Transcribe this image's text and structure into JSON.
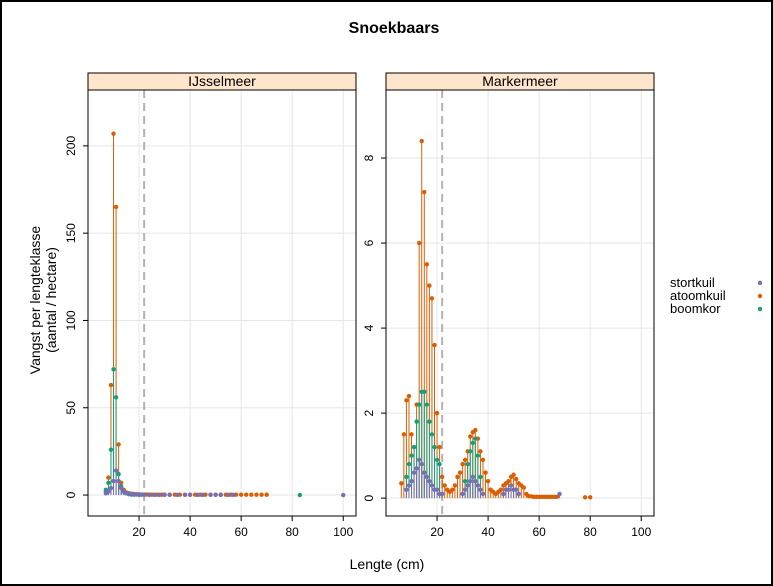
{
  "chart_data": {
    "type": "scatter",
    "style": "stem-plot",
    "title": "Snoekbaars",
    "xlabel": "Lengte (cm)",
    "ylabel_lines": [
      "Vangst per lengteklasse",
      "(aantal / hectare)"
    ],
    "reference_line_x": 22,
    "legend": {
      "placement": "right",
      "entries": [
        "stortkuil",
        "atoomkuil",
        "boomkor"
      ]
    },
    "colors": {
      "stortkuil": "#7570b3",
      "atoomkuil": "#d95f02",
      "boomkor": "#1b9e77",
      "strip": "#ffe5cc",
      "grid": "#e6e6e6",
      "refline": "#b3b3b3"
    },
    "grid": true,
    "panels": [
      {
        "name": "IJsselmeer",
        "xlim": [
          0,
          105
        ],
        "ylim": [
          -12,
          232
        ],
        "xticks": [
          20,
          40,
          60,
          80,
          100
        ],
        "yticks": [
          0,
          50,
          100,
          150,
          200
        ],
        "series": [
          {
            "name": "stortkuil",
            "x": [
              7,
              8,
              9,
              10,
              11,
              12,
              13,
              14,
              15,
              16,
              17,
              18,
              19,
              20,
              21,
              22,
              24,
              26,
              28,
              30,
              32,
              35,
              38,
              40,
              43,
              45,
              48,
              50,
              52,
              55,
              57,
              100
            ],
            "y": [
              1,
              2,
              4,
              8,
              14,
              8,
              4,
              2,
              1,
              1,
              0.5,
              0.4,
              0.3,
              0.3,
              0.2,
              0.2,
              0.1,
              0.1,
              0.1,
              0.1,
              0.1,
              0.1,
              0.1,
              0.1,
              0.1,
              0.1,
              0.1,
              0.1,
              0.1,
              0.1,
              0.1,
              0
            ]
          },
          {
            "name": "atoomkuil",
            "x": [
              7,
              8,
              9,
              10,
              11,
              12,
              13,
              14,
              15,
              16,
              17,
              18,
              19,
              20,
              21,
              22,
              23,
              24,
              25,
              26,
              27,
              28,
              29,
              30,
              32,
              34,
              36,
              38,
              40,
              42,
              44,
              46,
              48,
              50,
              52,
              54,
              56,
              58,
              60,
              62,
              64,
              66,
              68,
              70
            ],
            "y": [
              2,
              10,
              63,
              207,
              165,
              29,
              7,
              3,
              1.5,
              1,
              0.8,
              0.6,
              0.5,
              0.4,
              0.3,
              0.3,
              0.3,
              0.3,
              0.2,
              0.2,
              0.2,
              0.2,
              0.2,
              0.2,
              0.2,
              0.2,
              0.2,
              0.2,
              0.2,
              0.2,
              0.2,
              0.2,
              0.2,
              0.2,
              0.2,
              0.2,
              0.2,
              0.2,
              0.2,
              0.2,
              0.2,
              0.2,
              0.2,
              0.2
            ]
          },
          {
            "name": "boomkor",
            "x": [
              7,
              8,
              9,
              10,
              11,
              12,
              13,
              14,
              15,
              16,
              17,
              18,
              20,
              83
            ],
            "y": [
              3,
              7,
              26,
              72,
              56,
              12,
              5,
              2,
              1,
              0.5,
              0.3,
              0.2,
              0.1,
              0
            ]
          }
        ]
      },
      {
        "name": "Markermeer",
        "xlim": [
          0,
          105
        ],
        "ylim": [
          -0.42,
          9.6
        ],
        "xticks": [
          20,
          40,
          60,
          80,
          100
        ],
        "yticks": [
          0,
          2,
          4,
          6,
          8
        ],
        "series": [
          {
            "name": "stortkuil",
            "x": [
              8,
              9,
              10,
              11,
              12,
              13,
              14,
              15,
              16,
              17,
              18,
              19,
              20,
              21,
              22,
              30,
              31,
              32,
              33,
              34,
              35,
              36,
              37,
              38,
              46,
              47,
              48,
              49,
              50,
              51,
              52,
              68
            ],
            "y": [
              0.2,
              0.3,
              0.4,
              0.6,
              0.7,
              0.9,
              0.8,
              0.6,
              0.5,
              0.4,
              0.3,
              0.2,
              0.2,
              0.1,
              0.1,
              0.1,
              0.2,
              0.3,
              0.4,
              0.5,
              0.4,
              0.3,
              0.2,
              0.1,
              0.1,
              0.2,
              0.2,
              0.3,
              0.2,
              0.2,
              0.1,
              0.1
            ]
          },
          {
            "name": "atoomkuil",
            "x": [
              6,
              7,
              8,
              9,
              10,
              11,
              12,
              13,
              14,
              15,
              16,
              17,
              18,
              19,
              20,
              21,
              22,
              23,
              24,
              25,
              26,
              27,
              28,
              29,
              30,
              31,
              32,
              33,
              34,
              35,
              36,
              37,
              38,
              39,
              40,
              41,
              42,
              43,
              44,
              45,
              46,
              47,
              48,
              49,
              50,
              51,
              52,
              53,
              54,
              55,
              56,
              57,
              58,
              59,
              60,
              61,
              62,
              63,
              64,
              65,
              66,
              67,
              78,
              80
            ],
            "y": [
              0.35,
              1.5,
              2.3,
              2.4,
              1.5,
              1.2,
              2.2,
              6.0,
              8.4,
              7.2,
              5.5,
              5.0,
              4.7,
              3.6,
              2.0,
              1.2,
              0.5,
              0.3,
              0.2,
              0.15,
              0.2,
              0.3,
              0.5,
              0.6,
              0.8,
              0.9,
              1.1,
              1.45,
              1.55,
              1.6,
              1.4,
              1.1,
              0.9,
              0.6,
              0.4,
              0.2,
              0.15,
              0.1,
              0.15,
              0.2,
              0.3,
              0.35,
              0.4,
              0.5,
              0.55,
              0.45,
              0.35,
              0.3,
              0.25,
              0.1,
              0.05,
              0.04,
              0.03,
              0.03,
              0.03,
              0.03,
              0.03,
              0.03,
              0.03,
              0.03,
              0.03,
              0.03,
              0.02,
              0.02
            ]
          },
          {
            "name": "boomkor",
            "x": [
              8,
              9,
              10,
              11,
              12,
              13,
              14,
              15,
              16,
              17,
              18,
              19,
              20,
              21,
              31,
              32,
              33,
              34,
              35,
              36,
              37
            ],
            "y": [
              0.5,
              0.8,
              1.0,
              1.2,
              1.8,
              2.2,
              2.5,
              2.5,
              2.2,
              1.8,
              1.5,
              1.2,
              0.9,
              0.8,
              0.4,
              0.8,
              1.1,
              1.3,
              1.4,
              1.0,
              0.5
            ]
          }
        ]
      }
    ]
  }
}
